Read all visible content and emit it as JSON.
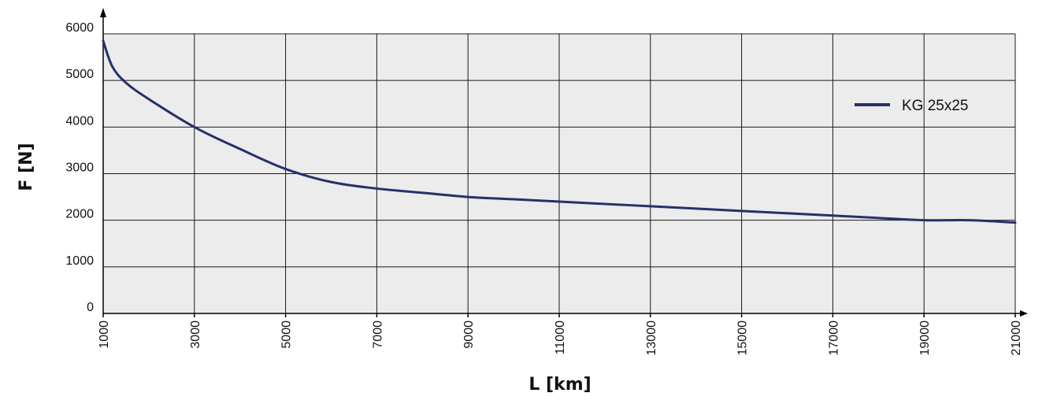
{
  "chart_data": {
    "type": "line",
    "xlabel": "L [km]",
    "ylabel": "F [N]",
    "xlim": [
      1000,
      21000
    ],
    "ylim": [
      0,
      6000
    ],
    "x_ticks": [
      "1000",
      "3000",
      "5000",
      "7000",
      "9000",
      "11000",
      "13000",
      "15000",
      "17000",
      "19000",
      "21000"
    ],
    "y_ticks": [
      "0",
      "1000",
      "2000",
      "3000",
      "4000",
      "5000",
      "6000"
    ],
    "grid": true,
    "legend_position": "top-right",
    "plot_background": "#ececec",
    "series": [
      {
        "name": "KG 25x25",
        "color": "#26306b",
        "x": [
          1000,
          1200,
          1500,
          2000,
          3000,
          4000,
          5000,
          6000,
          7000,
          8000,
          9000,
          10000,
          11000,
          12000,
          13000,
          14000,
          15000,
          16000,
          17000,
          18000,
          19000,
          20000,
          21000
        ],
        "y": [
          5850,
          5300,
          4950,
          4600,
          4000,
          3530,
          3100,
          2820,
          2680,
          2590,
          2500,
          2450,
          2400,
          2350,
          2300,
          2250,
          2200,
          2150,
          2100,
          2050,
          2000,
          2000,
          1950
        ]
      }
    ]
  }
}
